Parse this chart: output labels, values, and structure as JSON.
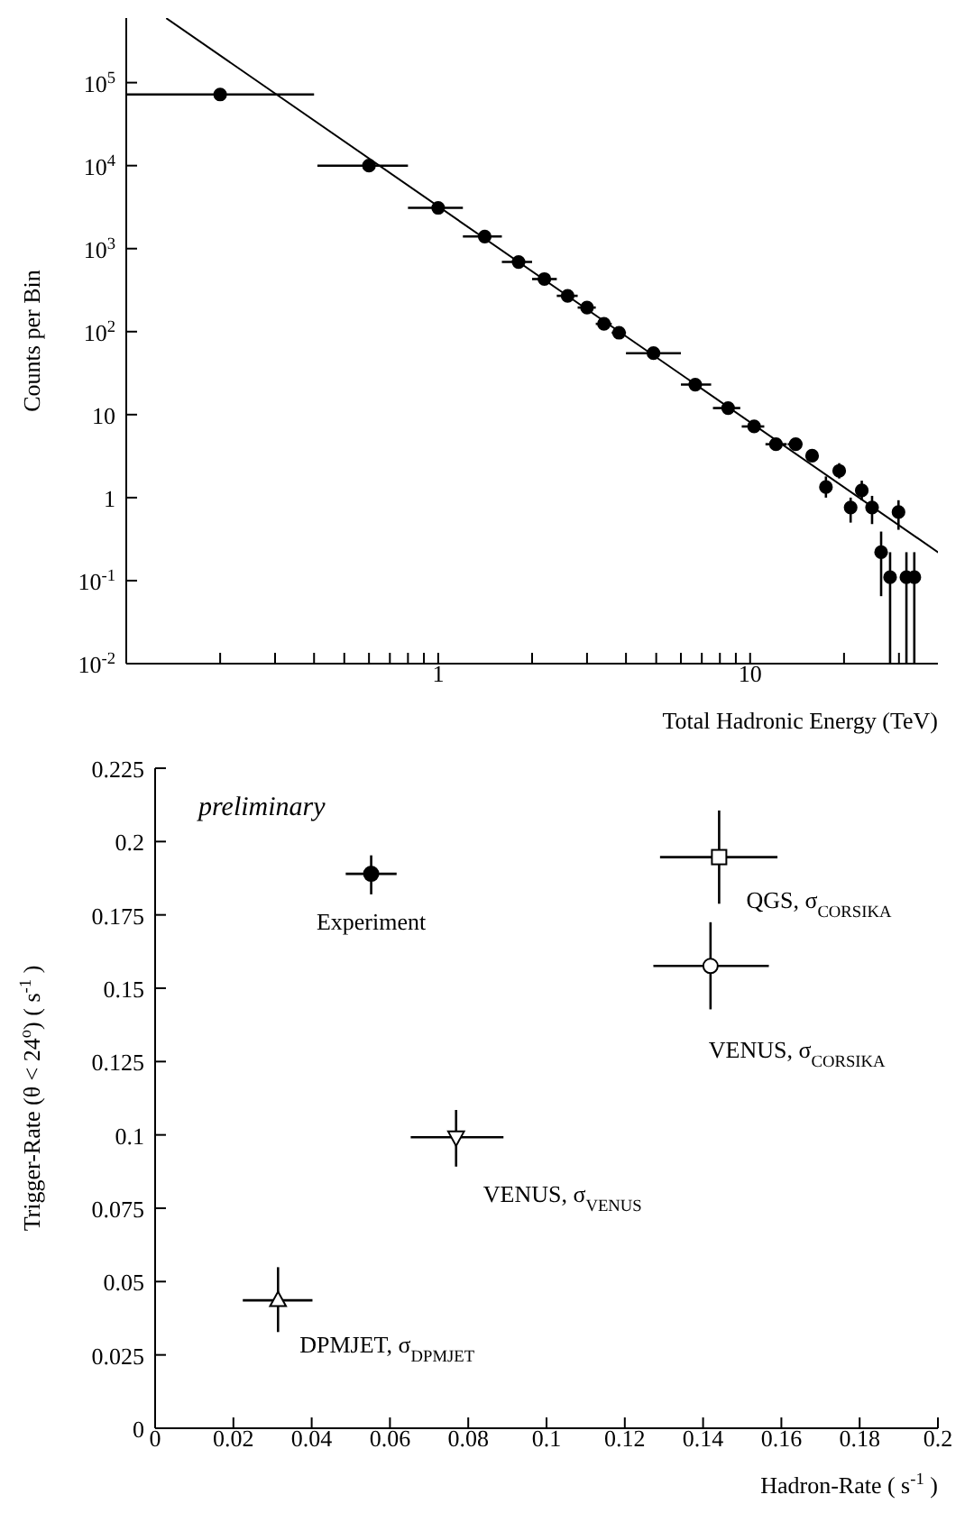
{
  "chart_data": [
    {
      "type": "scatter",
      "xlabel": "Total Hadronic Energy (TeV)",
      "ylabel": "Counts per Bin",
      "log": "xy",
      "xlim": [
        0.1,
        40
      ],
      "ylim": [
        0.01,
        600000
      ],
      "xticks": [
        {
          "value": 0.2,
          "label": null
        },
        {
          "value": 0.3,
          "label": null
        },
        {
          "value": 0.4,
          "label": null
        },
        {
          "value": 0.5,
          "label": null
        },
        {
          "value": 0.6,
          "label": null
        },
        {
          "value": 0.7,
          "label": null
        },
        {
          "value": 0.8,
          "label": null
        },
        {
          "value": 0.9,
          "label": null
        },
        1,
        {
          "value": 2,
          "label": null
        },
        {
          "value": 3,
          "label": null
        },
        {
          "value": 4,
          "label": null
        },
        {
          "value": 5,
          "label": null
        },
        {
          "value": 6,
          "label": null
        },
        {
          "value": 7,
          "label": null
        },
        {
          "value": 8,
          "label": null
        },
        {
          "value": 9,
          "label": null
        },
        10,
        {
          "value": 20,
          "label": null
        },
        {
          "value": 30,
          "label": null
        }
      ],
      "yticks": [
        {
          "value": 0.01,
          "label": "10$^{-2}$"
        },
        {
          "value": 0.1,
          "label": "10$^{-1}$"
        },
        1,
        10,
        {
          "value": 100,
          "label": "10$^{2}$"
        },
        {
          "value": 1000,
          "label": "10$^{3}$"
        },
        {
          "value": 10000,
          "label": "10$^{4}$"
        },
        {
          "value": 100000,
          "label": "10$^{5}$"
        }
      ],
      "grid": false,
      "legend": false,
      "series": [
        {
          "color": "#000000",
          "marker": "circle",
          "x": [
            0.2,
            0.6,
            1.0,
            1.41,
            1.81,
            2.19,
            2.6,
            3.0,
            3.4,
            3.8,
            4.9,
            6.67,
            8.5,
            10.3,
            12.1,
            14.0,
            15.8,
            17.5,
            19.3,
            21,
            22.8,
            24.6,
            26.3,
            28.1,
            29.9,
            31.7,
            33.6
          ],
          "values": [
            72000,
            10000,
            3100,
            1400,
            690,
            430,
            270,
            195,
            124,
            97,
            55,
            23,
            12,
            7.2,
            4.4,
            4.4,
            3.2,
            1.34,
            2.1,
            0.76,
            1.22,
            0.76,
            0.22,
            0.11,
            0.67,
            0.11,
            0.11
          ],
          "errors": [
            null,
            null,
            null,
            null,
            null,
            null,
            null,
            null,
            null,
            null,
            null,
            null,
            null,
            null,
            null,
            null,
            null,
            [
              1.0,
              1.8
            ],
            [
              1.7,
              2.6
            ],
            [
              0.5,
              1.0
            ],
            [
              0.93,
              1.6
            ],
            [
              0.48,
              1.05
            ],
            [
              0.065,
              0.39
            ],
            [
              0.01,
              0.22
            ],
            [
              0.41,
              0.93
            ],
            [
              0.01,
              0.22
            ],
            [
              0.01,
              0.22
            ]
          ],
          "xerrors": [
            [
              0.1,
              0.4
            ],
            [
              0.41,
              0.8
            ],
            [
              0.8,
              1.2
            ],
            [
              1.2,
              1.6
            ],
            [
              1.6,
              2.0
            ],
            [
              2.0,
              2.4
            ],
            [
              2.4,
              2.8
            ],
            [
              2.8,
              3.2
            ],
            [
              3.2,
              3.6
            ],
            [
              3.6,
              4.0
            ],
            [
              4.0,
              6.0
            ],
            [
              6.0,
              7.5
            ],
            [
              7.6,
              9.3
            ],
            [
              9.4,
              11.1
            ],
            [
              11.2,
              13.1
            ],
            [
              13.2,
              14.7
            ],
            null,
            null,
            null,
            null,
            null,
            null,
            null,
            null,
            null,
            null,
            null
          ]
        },
        {
          "type": "line",
          "color": "#000000",
          "marker": "none",
          "line_style": "solid",
          "x": [
            0.135,
            40
          ],
          "values": [
            590000,
            0.22
          ]
        }
      ]
    },
    {
      "type": "scatter",
      "xlabel": "Hadron-Rate ( s$^{-1}$ )",
      "ylabel": "Trigger-Rate (θ < 24$^{o}$) ( s$^{-1}$ )",
      "xlim": [
        0,
        0.2
      ],
      "ylim": [
        0,
        0.225
      ],
      "xticks": [
        0,
        0.02,
        0.04,
        0.06,
        0.08,
        0.1,
        0.12,
        0.14,
        0.16,
        0.18,
        0.2
      ],
      "yticks": [
        0,
        0.025,
        0.05,
        0.075,
        0.1,
        0.125,
        0.15,
        0.175,
        0.2,
        0.225
      ],
      "grid": false,
      "legend": false,
      "annotations": [
        "preliminary"
      ],
      "series": [
        {
          "name": "Experiment",
          "color": "#000000",
          "marker": "circle",
          "x": [
            0.0552
          ],
          "values": [
            0.189
          ],
          "errors": [
            [
              0.182,
              0.1953
            ]
          ],
          "xerrors": [
            [
              0.0487,
              0.0617
            ]
          ]
        },
        {
          "name": "QGS, σ$_{CORSIKA}$",
          "color": "#ffffff",
          "marker": "square",
          "x": [
            0.1441
          ],
          "values": [
            0.1947
          ],
          "errors": [
            [
              0.1788,
              0.2106
            ]
          ],
          "xerrors": [
            [
              0.129,
              0.159
            ]
          ]
        },
        {
          "name": "VENUS, σ$_{CORSIKA}$",
          "color": "#ffffff",
          "marker": "circle",
          "x": [
            0.1419
          ],
          "values": [
            0.1576
          ],
          "errors": [
            [
              0.1428,
              0.1725
            ]
          ],
          "xerrors": [
            [
              0.1273,
              0.1568
            ]
          ]
        },
        {
          "name": "VENUS, σ$_{VENUS}$",
          "color": "#ffffff",
          "marker": "triangle-down",
          "x": [
            0.0769
          ],
          "values": [
            0.0992
          ],
          "errors": [
            [
              0.0892,
              0.1085
            ]
          ],
          "xerrors": [
            [
              0.0653,
              0.089
            ]
          ]
        },
        {
          "name": "DPMJET,  σ$_{DPMJET}$",
          "color": "#ffffff",
          "marker": "triangle",
          "x": [
            0.0314
          ],
          "values": [
            0.0436
          ],
          "errors": [
            [
              0.0328,
              0.0549
            ]
          ],
          "xerrors": [
            [
              0.0224,
              0.0402
            ]
          ]
        }
      ]
    }
  ]
}
